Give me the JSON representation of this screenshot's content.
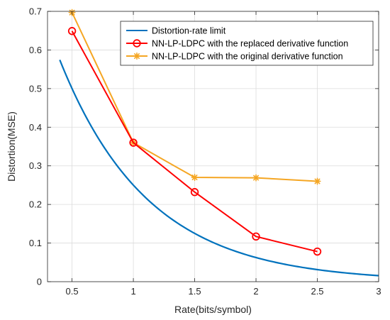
{
  "chart_data": {
    "type": "line",
    "xlabel": "Rate(bits/symbol)",
    "ylabel": "Distortion(MSE)",
    "xlim": [
      0.3,
      3
    ],
    "ylim": [
      0,
      0.7
    ],
    "x_ticks": [
      "0.5",
      "1",
      "1.5",
      "2",
      "2.5",
      "3"
    ],
    "y_ticks": [
      "0",
      "0.1",
      "0.2",
      "0.3",
      "0.4",
      "0.5",
      "0.6",
      "0.7"
    ],
    "grid": true,
    "legend_position": "top-right",
    "series": [
      {
        "name": "Distortion-rate limit",
        "color": "#0072BD",
        "marker": "none",
        "function": "1 * 2^(-2R)",
        "x": [
          0.4,
          0.5,
          0.6,
          0.7,
          0.8,
          0.9,
          1.0,
          1.1,
          1.2,
          1.3,
          1.4,
          1.5,
          1.6,
          1.7,
          1.8,
          1.9,
          2.0,
          2.1,
          2.2,
          2.3,
          2.4,
          2.5,
          2.6,
          2.7,
          2.8,
          2.9,
          3.0
        ],
        "y": [
          0.574,
          0.5,
          0.435,
          0.379,
          0.33,
          0.287,
          0.25,
          0.218,
          0.189,
          0.165,
          0.144,
          0.125,
          0.109,
          0.095,
          0.082,
          0.072,
          0.0625,
          0.054,
          0.047,
          0.041,
          0.036,
          0.031,
          0.027,
          0.024,
          0.021,
          0.018,
          0.0156
        ]
      },
      {
        "name": "NN-LP-LDPC with the replaced derivative function",
        "color": "#FF0000",
        "marker": "circle",
        "x": [
          0.5,
          1.0,
          1.5,
          2.0,
          2.5
        ],
        "y": [
          0.649,
          0.36,
          0.232,
          0.117,
          0.078
        ]
      },
      {
        "name": "NN-LP-LDPC with the original derivative function",
        "color": "#F5A623",
        "marker": "asterisk",
        "x": [
          0.5,
          1.0,
          1.5,
          2.0,
          2.5
        ],
        "y": [
          0.697,
          0.36,
          0.27,
          0.269,
          0.26
        ]
      }
    ]
  }
}
